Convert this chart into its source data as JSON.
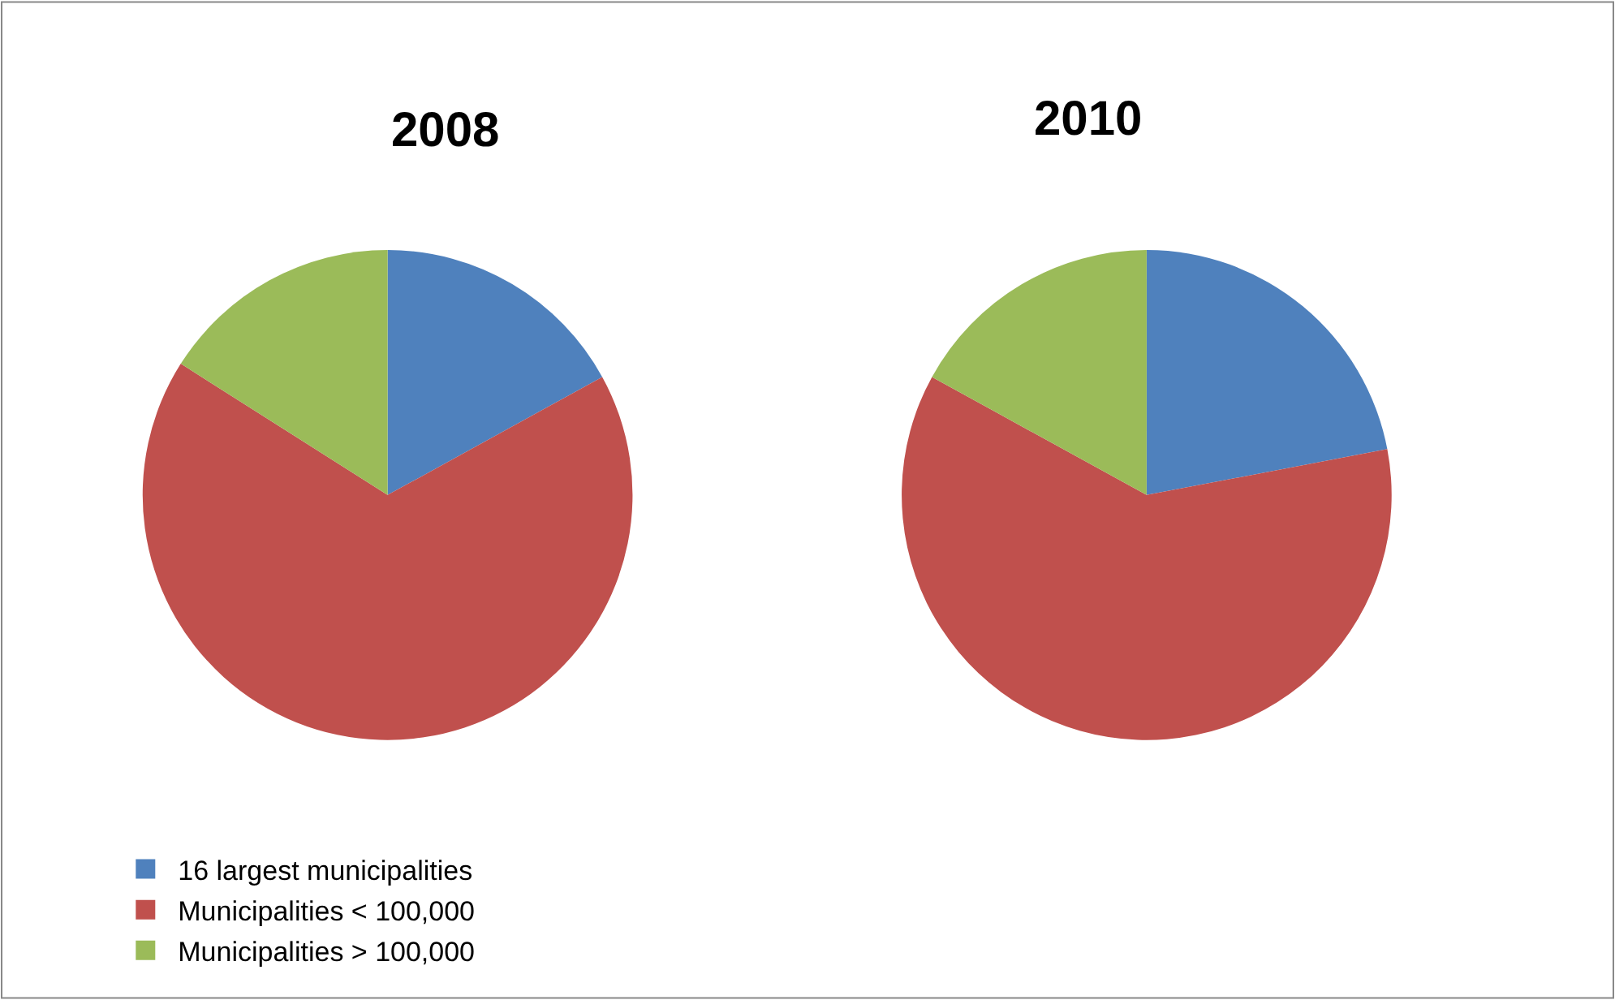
{
  "chart_data": {
    "type": "pie",
    "categories": [
      "16 largest municipalities",
      "Municipalities < 100,000",
      "Municipalities > 100,000"
    ],
    "colors": [
      "#4f81bd",
      "#c0504d",
      "#9bbb59"
    ],
    "legend": "bottom",
    "series": [
      {
        "name": "2008",
        "values": [
          17,
          67,
          16
        ]
      },
      {
        "name": "2010",
        "values": [
          22,
          61,
          17
        ]
      }
    ]
  }
}
